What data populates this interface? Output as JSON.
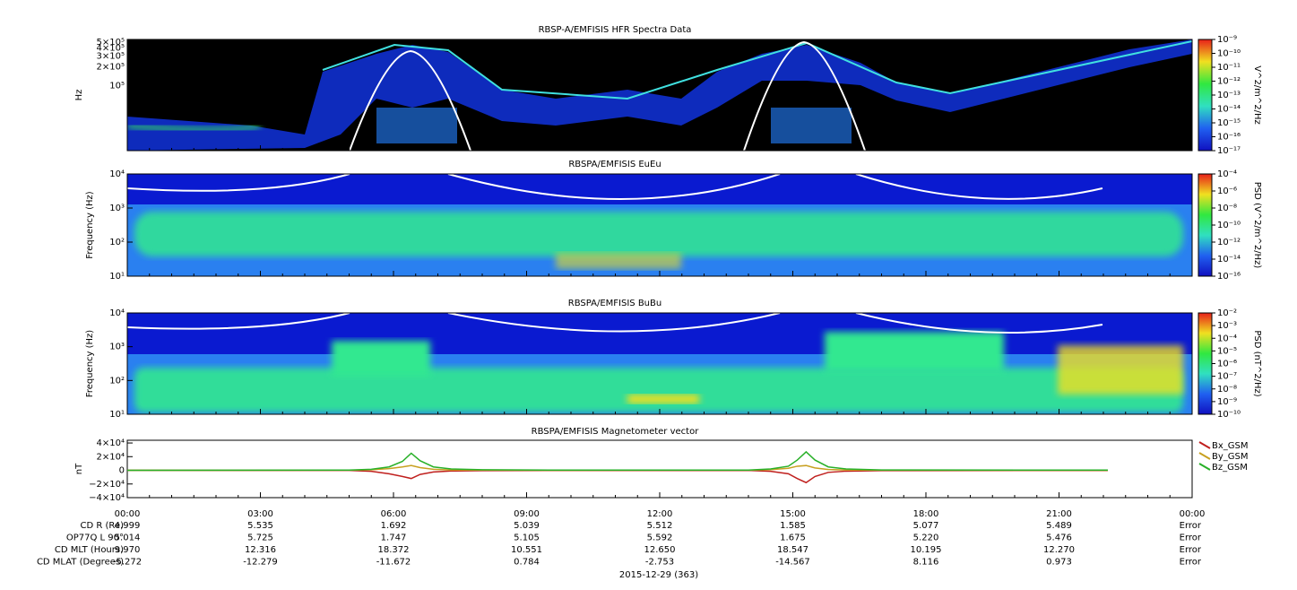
{
  "chart_data": [
    {
      "type": "spectrogram",
      "title": "RBSP-A/EMFISIS  HFR Spectra Data",
      "ylabel": "Hz",
      "log": true,
      "ylim": [
        9000,
        550000
      ],
      "yticks": [
        {
          "value": 100000,
          "label": "10⁵"
        },
        {
          "value": 200000,
          "label": "2×10⁵"
        },
        {
          "value": 300000,
          "label": "3×10⁵"
        },
        {
          "value": 400000,
          "label": "4×10⁵"
        },
        {
          "value": 500000,
          "label": "5×10⁵"
        }
      ],
      "colorbar": {
        "label": "V^2/m^2/Hz",
        "clim": [
          1e-17,
          1e-09
        ],
        "ticks": [
          {
            "value": 1e-09,
            "label": "10⁻⁹"
          },
          {
            "value": 1e-10,
            "label": "10⁻¹⁰"
          },
          {
            "value": 1e-11,
            "label": "10⁻¹¹"
          },
          {
            "value": 1e-12,
            "label": "10⁻¹²"
          },
          {
            "value": 1e-13,
            "label": "10⁻¹³"
          },
          {
            "value": 1e-14,
            "label": "10⁻¹⁴"
          },
          {
            "value": 1e-15,
            "label": "10⁻¹⁵"
          },
          {
            "value": 1e-16,
            "label": "10⁻¹⁶"
          },
          {
            "value": 1e-17,
            "label": "10⁻¹⁷"
          }
        ]
      }
    },
    {
      "type": "spectrogram",
      "title": "RBSPA/EMFISIS  EuEu",
      "ylabel": "Frequency (Hz)",
      "log": true,
      "ylim": [
        10,
        10000
      ],
      "yticks": [
        {
          "value": 10,
          "label": "10¹"
        },
        {
          "value": 100,
          "label": "10²"
        },
        {
          "value": 1000,
          "label": "10³"
        },
        {
          "value": 10000,
          "label": "10⁴"
        }
      ],
      "colorbar": {
        "label": "PSD (V^2/m^2/Hz)",
        "clim": [
          1e-16,
          0.0001
        ],
        "ticks": [
          {
            "value": 0.0001,
            "label": "10⁻⁴"
          },
          {
            "value": 1e-06,
            "label": "10⁻⁶"
          },
          {
            "value": 1e-08,
            "label": "10⁻⁸"
          },
          {
            "value": 1e-10,
            "label": "10⁻¹⁰"
          },
          {
            "value": 1e-12,
            "label": "10⁻¹²"
          },
          {
            "value": 1e-14,
            "label": "10⁻¹⁴"
          },
          {
            "value": 1e-16,
            "label": "10⁻¹⁶"
          }
        ]
      }
    },
    {
      "type": "spectrogram",
      "title": "RBSPA/EMFISIS  BuBu",
      "ylabel": "Frequency (Hz)",
      "log": true,
      "ylim": [
        10,
        10000
      ],
      "yticks": [
        {
          "value": 10,
          "label": "10¹"
        },
        {
          "value": 100,
          "label": "10²"
        },
        {
          "value": 1000,
          "label": "10³"
        },
        {
          "value": 10000,
          "label": "10⁴"
        }
      ],
      "colorbar": {
        "label": "PSD (nT^2/Hz)",
        "clim": [
          1e-10,
          0.01
        ],
        "ticks": [
          {
            "value": 0.01,
            "label": "10⁻²"
          },
          {
            "value": 0.001,
            "label": "10⁻³"
          },
          {
            "value": 0.0001,
            "label": "10⁻⁴"
          },
          {
            "value": 1e-05,
            "label": "10⁻⁵"
          },
          {
            "value": 1e-06,
            "label": "10⁻⁶"
          },
          {
            "value": 1e-07,
            "label": "10⁻⁷"
          },
          {
            "value": 1e-08,
            "label": "10⁻⁸"
          },
          {
            "value": 1e-09,
            "label": "10⁻⁹"
          },
          {
            "value": 1e-10,
            "label": "10⁻¹⁰"
          }
        ]
      }
    },
    {
      "type": "line",
      "title": "RBSPA/EMFISIS  Magnetometer vector",
      "ylabel": "nT",
      "ylim": [
        -40000,
        44000
      ],
      "yticks": [
        {
          "value": 40000,
          "label": "4×10⁴"
        },
        {
          "value": 20000,
          "label": "2×10⁴"
        },
        0,
        {
          "value": -20000,
          "label": "−2×10⁴"
        },
        {
          "value": -40000,
          "label": "−4×10⁴"
        }
      ],
      "xlim": [
        0,
        24
      ],
      "xticks": [
        {
          "value": 0,
          "label": "00:00"
        },
        {
          "value": 3,
          "label": "03:00"
        },
        {
          "value": 6,
          "label": "06:00"
        },
        {
          "value": 9,
          "label": "09:00"
        },
        {
          "value": 12,
          "label": "12:00"
        },
        {
          "value": 15,
          "label": "15:00"
        },
        {
          "value": 18,
          "label": "18:00"
        },
        {
          "value": 21,
          "label": "21:00"
        },
        {
          "value": 24,
          "label": "00:00"
        }
      ],
      "x": [
        0,
        5,
        5.5,
        5.9,
        6.2,
        6.4,
        6.6,
        6.9,
        7.3,
        8,
        9.5,
        14,
        14.5,
        14.9,
        15.1,
        15.3,
        15.5,
        15.8,
        16.2,
        17,
        22.1
      ],
      "series": [
        {
          "name": "Bx_GSM",
          "color": "#c0201e",
          "values": [
            0,
            -200,
            -1500,
            -5000,
            -9000,
            -12000,
            -6000,
            -2500,
            -1000,
            -500,
            -300,
            -200,
            -1500,
            -5000,
            -12000,
            -18000,
            -9000,
            -3000,
            -1200,
            -500,
            -300
          ]
        },
        {
          "name": "By_GSM",
          "color": "#c8a020",
          "values": [
            0,
            200,
            800,
            2500,
            5000,
            7000,
            4000,
            1500,
            600,
            300,
            100,
            200,
            1000,
            3000,
            6000,
            7000,
            3500,
            1200,
            500,
            200,
            0
          ]
        },
        {
          "name": "Bz_GSM",
          "color": "#28b028",
          "values": [
            0,
            300,
            1500,
            5000,
            13000,
            25000,
            14000,
            5000,
            2000,
            800,
            300,
            300,
            2000,
            6000,
            15000,
            27000,
            15000,
            5000,
            2000,
            600,
            300
          ]
        }
      ]
    }
  ],
  "ephemeris": {
    "date": "2015-12-29 (363)",
    "rows": [
      {
        "label": "CD R (Re)",
        "values": [
          "4.999",
          "5.535",
          "1.692",
          "5.039",
          "5.512",
          "1.585",
          "5.077",
          "5.489",
          "Error"
        ]
      },
      {
        "label": "OP77Q L 90°",
        "values": [
          "5.014",
          "5.725",
          "1.747",
          "5.105",
          "5.592",
          "1.675",
          "5.220",
          "5.476",
          "Error"
        ]
      },
      {
        "label": "CD MLT (Hours)",
        "values": [
          "9.970",
          "12.316",
          "18.372",
          "10.551",
          "12.650",
          "18.547",
          "10.195",
          "12.270",
          "Error"
        ]
      },
      {
        "label": "CD MLAT (Degrees)",
        "values": [
          "-5.272",
          "-12.279",
          "-11.672",
          "0.784",
          "-2.753",
          "-14.567",
          "8.116",
          "0.973",
          "Error"
        ]
      }
    ]
  }
}
